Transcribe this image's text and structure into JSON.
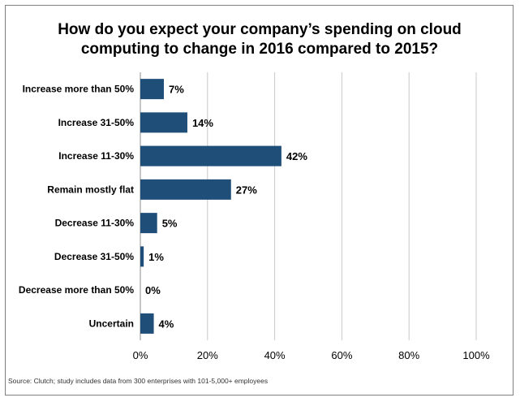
{
  "chart_data": {
    "type": "bar",
    "orientation": "horizontal",
    "title_lines": [
      "How do you expect your company’s spending on cloud",
      "computing to change in 2016 compared to 2015?"
    ],
    "categories": [
      "Increase more than 50%",
      "Increase 31-50%",
      "Increase 11-30%",
      "Remain mostly flat",
      "Decrease 11-30%",
      "Decrease 31-50%",
      "Decrease more than 50%",
      "Uncertain"
    ],
    "values": [
      7,
      14,
      42,
      27,
      5,
      1,
      0,
      4
    ],
    "value_labels": [
      "7%",
      "14%",
      "42%",
      "27%",
      "5%",
      "1%",
      "0%",
      "4%"
    ],
    "xlim": [
      0,
      100
    ],
    "xticks": [
      0,
      20,
      40,
      60,
      80,
      100
    ],
    "xtick_labels": [
      "0%",
      "20%",
      "40%",
      "60%",
      "80%",
      "100%"
    ],
    "grid": "vertical",
    "legend": "none",
    "bar_color": "#1f4e79",
    "source": "Source: Clutch; study includes data from 300 enterprises with 101-5,000+ employees"
  }
}
